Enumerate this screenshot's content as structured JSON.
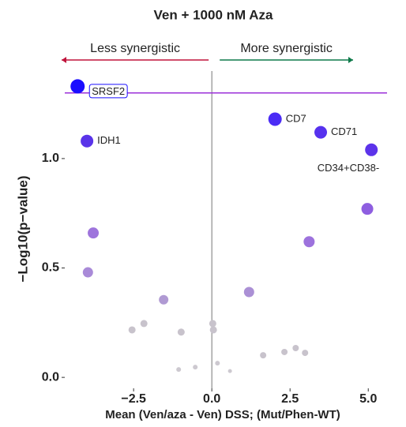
{
  "chart_data": {
    "type": "scatter",
    "title": "Ven + 1000 nM Aza",
    "xlabel": "Mean (Ven/aza - Ven) DSS; (Mut/Phen-WT)",
    "ylabel": "−Log10(p−value)",
    "annotations": [
      {
        "text": "Less synergistic",
        "color": "#c0143c",
        "direction": "left"
      },
      {
        "text": "More synergistic",
        "color": "#0e7a4a",
        "direction": "right"
      }
    ],
    "threshold": 1.3,
    "threshold_color": "#9b30d9",
    "xlim": [
      -4.7,
      5.6
    ],
    "ylim": [
      -0.05,
      1.4
    ],
    "xticks": [
      {
        "value": -2.5,
        "label": "−2.5"
      },
      {
        "value": 0,
        "label": "0.0"
      },
      {
        "value": 2.5,
        "label": "2.5"
      },
      {
        "value": 5,
        "label": "5.0"
      }
    ],
    "yticks": [
      {
        "value": 0,
        "label": "0.0"
      },
      {
        "value": 0.5,
        "label": "0.5"
      },
      {
        "value": 1,
        "label": "1.0"
      }
    ],
    "x": [
      -4.29,
      -3.99,
      2.02,
      3.48,
      5.1,
      4.97,
      3.11,
      -3.79,
      -3.96,
      -1.54,
      1.19,
      -2.17,
      -2.55,
      -0.98,
      0.03,
      0.05,
      2.32,
      2.68,
      2.98,
      1.64,
      -0.53,
      -1.06,
      0.18,
      0.58
    ],
    "values": [
      1.33,
      1.08,
      1.18,
      1.12,
      1.04,
      0.77,
      0.62,
      0.66,
      0.48,
      0.355,
      0.39,
      0.246,
      0.217,
      0.207,
      0.246,
      0.217,
      0.116,
      0.134,
      0.112,
      0.101,
      0.047,
      0.036,
      0.065,
      0.029
    ],
    "sizes": [
      9,
      8,
      8.5,
      8,
      8,
      7.5,
      7,
      7,
      6.5,
      6,
      6.5,
      4.5,
      4.5,
      4.5,
      4.5,
      4.5,
      4,
      4,
      4,
      4,
      3,
      3,
      3,
      2.5
    ],
    "colors": [
      "#1a0dff",
      "#5a34e9",
      "#4b2cf5",
      "#5631ee",
      "#5c33ea",
      "#8e5ee0",
      "#9d72dd",
      "#9e74dc",
      "#a98ad8",
      "#b09ad3",
      "#ab90d5",
      "#c8c3cc",
      "#c8c3cc",
      "#c8c3cc",
      "#c8c3cc",
      "#c8c3cc",
      "#c8c3cc",
      "#c8c3cc",
      "#c8c3cc",
      "#c8c3cc",
      "#cdc9d0",
      "#cdc9d0",
      "#cdc9d0",
      "#cdc9d0"
    ],
    "labels": [
      "SRSF2",
      "IDH1",
      "CD7",
      "CD71",
      "CD34+CD38-",
      null,
      null,
      null,
      null,
      null,
      null,
      null,
      null,
      null,
      null,
      null,
      null,
      null,
      null,
      null,
      null,
      null,
      null,
      null
    ]
  }
}
